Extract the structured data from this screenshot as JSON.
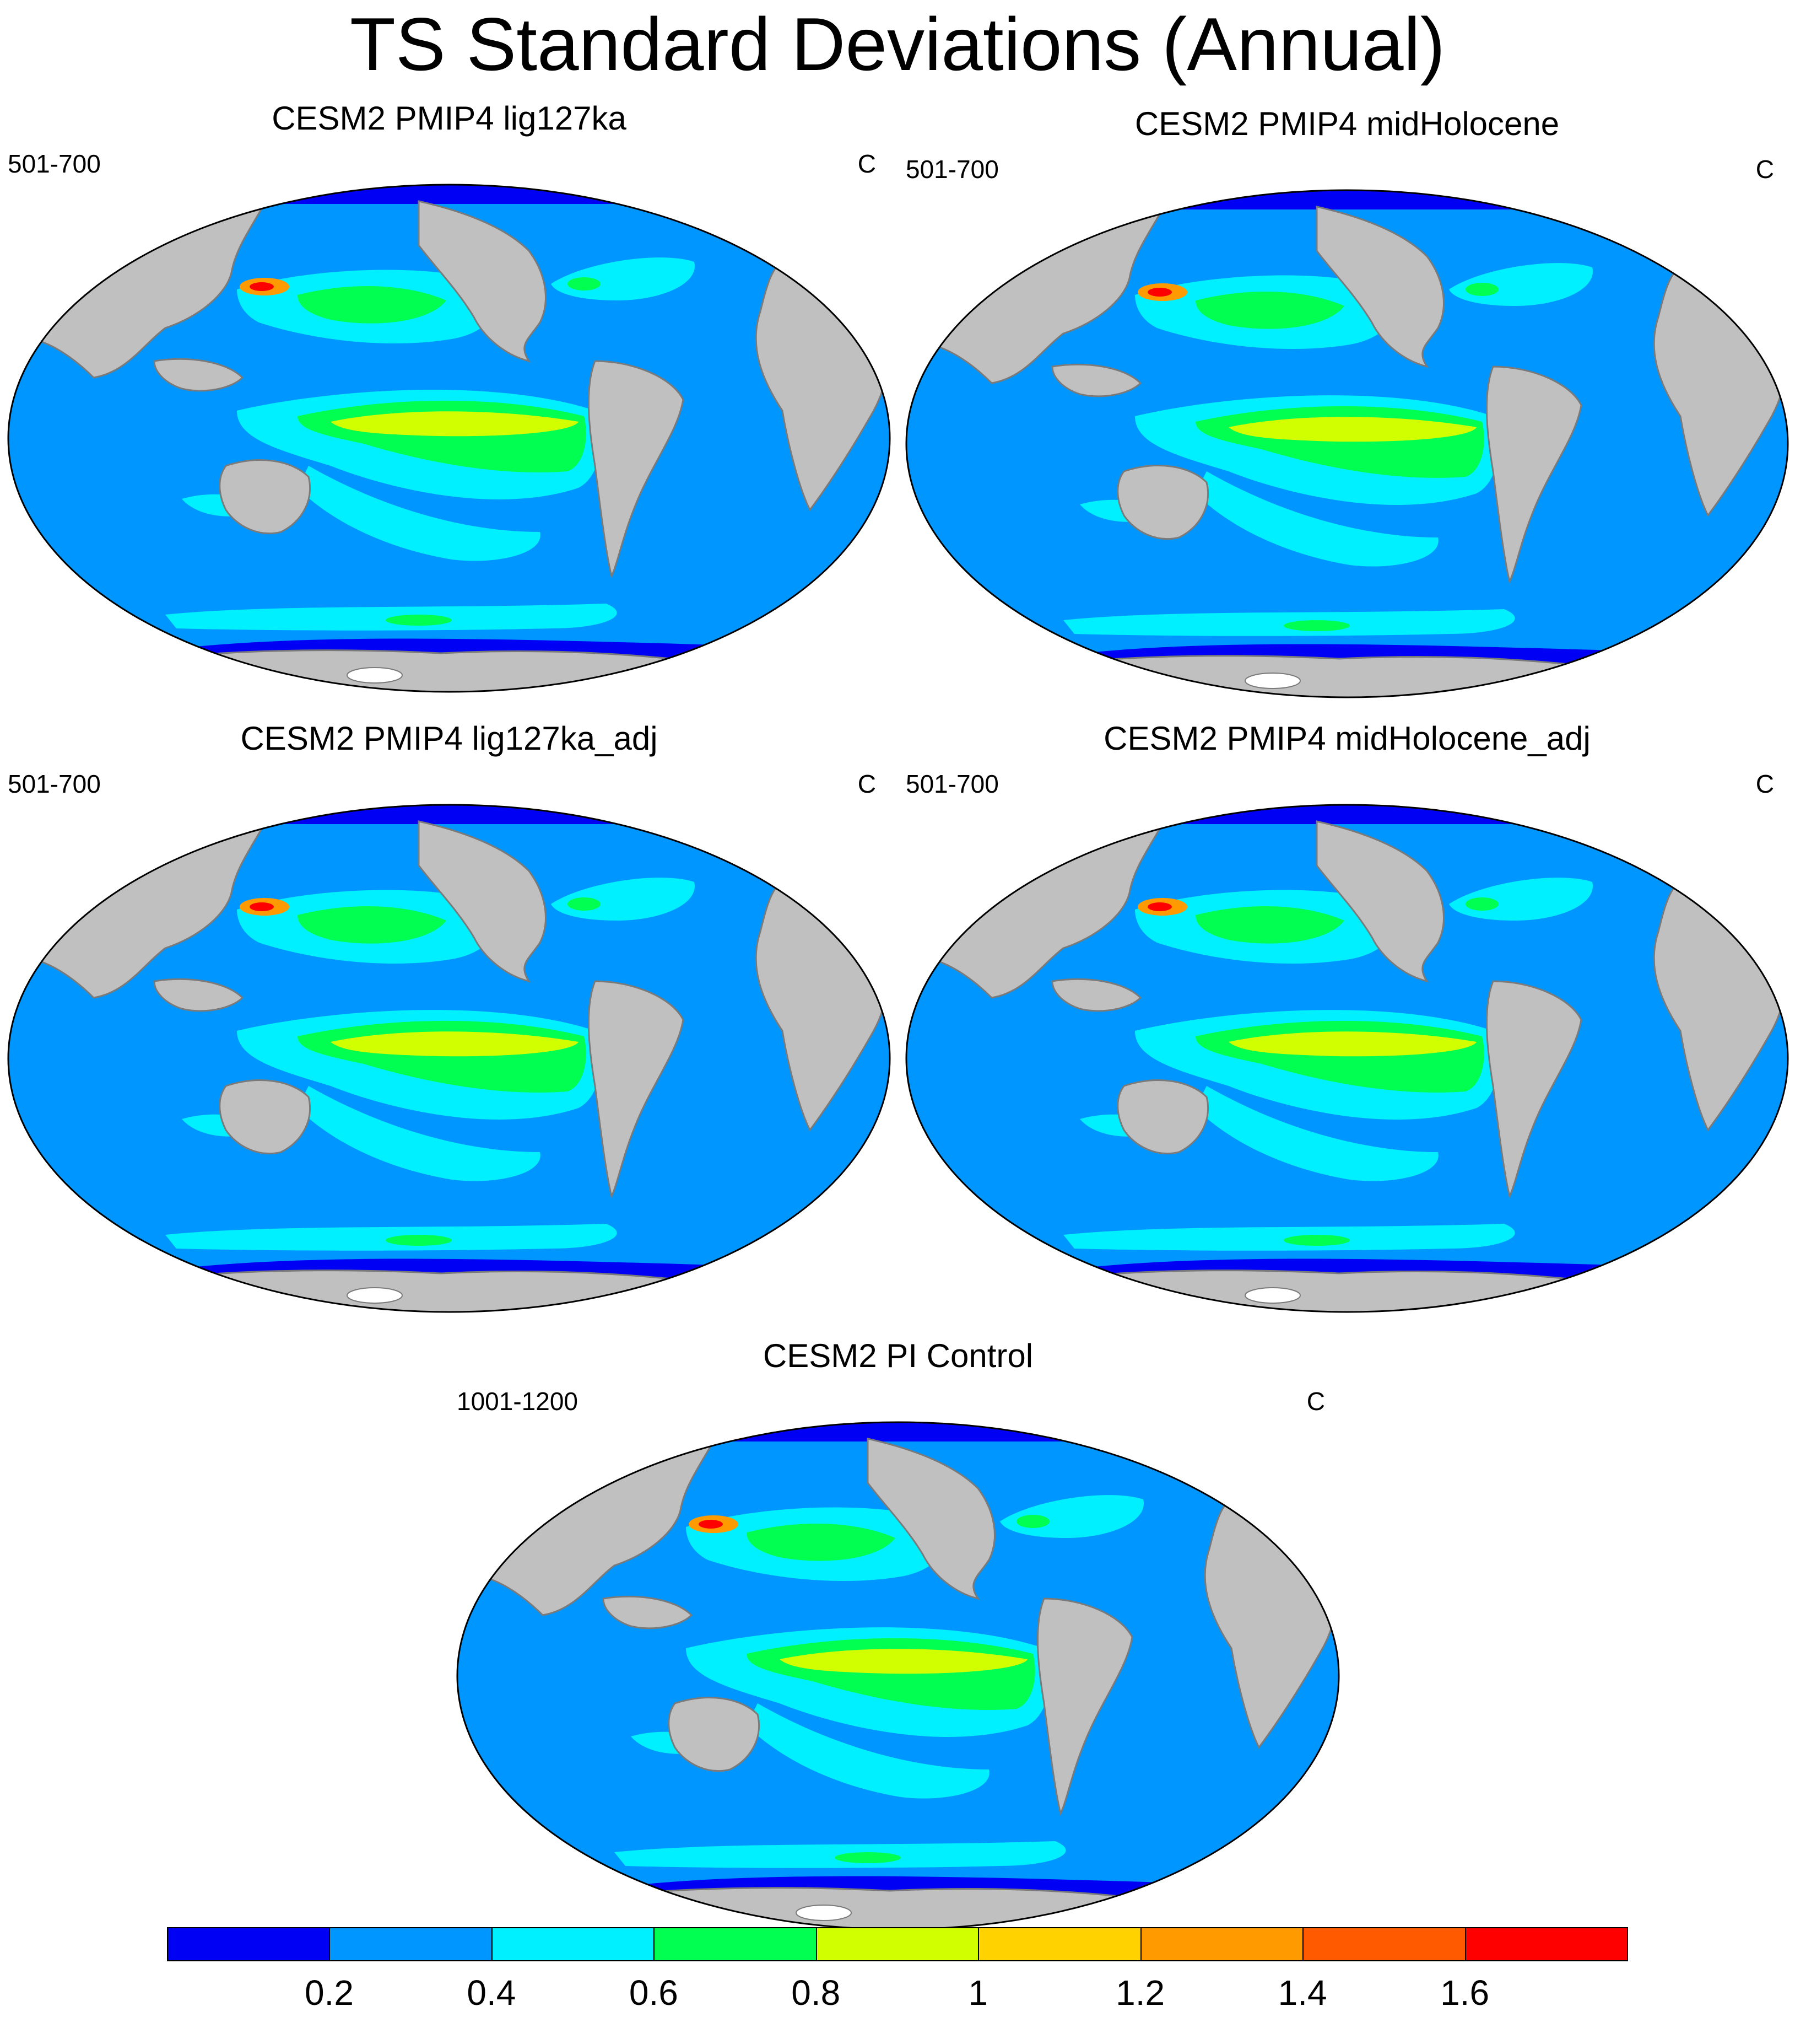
{
  "title": "TS Standard Deviations (Annual)",
  "panels": [
    {
      "title": "CESM2 PMIP4 lig127ka",
      "years": "501-700",
      "units": "C"
    },
    {
      "title": "CESM2 PMIP4 midHolocene",
      "years": "501-700",
      "units": "C"
    },
    {
      "title": "CESM2 PMIP4 lig127ka_adj",
      "years": "501-700",
      "units": "C"
    },
    {
      "title": "CESM2 PMIP4 midHolocene_adj",
      "years": "501-700",
      "units": "C"
    },
    {
      "title": "CESM2 PI Control",
      "years": "1001-1200",
      "units": "C"
    }
  ],
  "colorbar": {
    "colors": [
      "#0000f5",
      "#0096ff",
      "#00f0ff",
      "#00ff50",
      "#d2ff00",
      "#ffd200",
      "#ff9b00",
      "#ff5a00",
      "#ff0000"
    ],
    "labels": [
      "0.2",
      "0.4",
      "0.6",
      "0.8",
      "1",
      "1.2",
      "1.4",
      "1.6"
    ]
  },
  "map_colors": {
    "land": "#c0c0c0",
    "ocean_base": "#0096ff",
    "coast": "#7a7a7a",
    "outline": "#000000",
    "ice_shelf": "#ffffff"
  }
}
